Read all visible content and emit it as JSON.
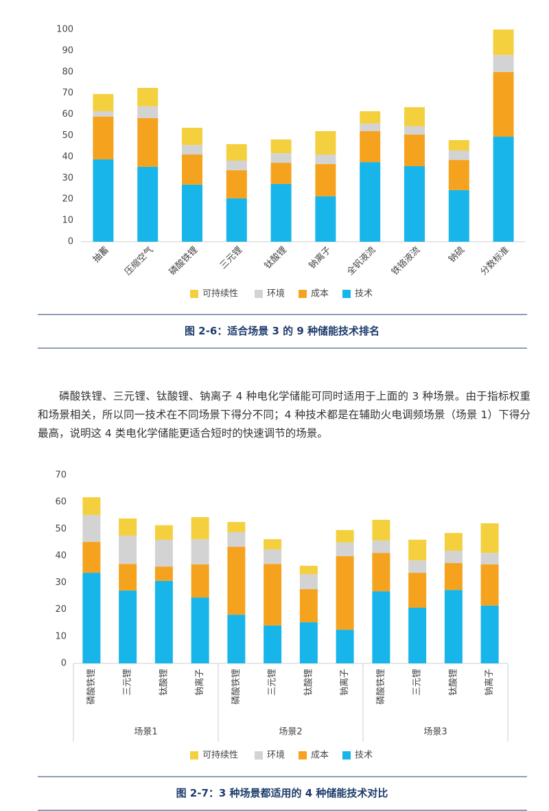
{
  "chart_data": [
    {
      "type": "bar",
      "stacked": true,
      "title": "图 2-6：适合场景 3 的 9 种储能技术排名",
      "categories": [
        "抽蓄",
        "压缩空气",
        "磷酸铁锂",
        "三元锂",
        "钛酸锂",
        "钠离子",
        "全钒液流",
        "铁铬液流",
        "钠硫",
        "分数标准"
      ],
      "series": [
        {
          "name": "技术",
          "color": "#17b5ea",
          "values": [
            38.8,
            35.3,
            26.9,
            20.4,
            27.2,
            21.4,
            37.5,
            35.6,
            24.3,
            49.5
          ]
        },
        {
          "name": "成本",
          "color": "#f5a31f",
          "values": [
            20.2,
            23,
            14.2,
            13.3,
            10,
            15.2,
            14.6,
            14.9,
            14.2,
            30.5
          ]
        },
        {
          "name": "环境",
          "color": "#d3d3d3",
          "values": [
            2.5,
            5.5,
            4.5,
            4.5,
            4.5,
            4.5,
            3.6,
            3.9,
            4.5,
            8
          ]
        },
        {
          "name": "可持续性",
          "color": "#f4d03f",
          "values": [
            8.1,
            8.7,
            8.1,
            7.8,
            6.5,
            11,
            5.8,
            9,
            4.9,
            12
          ]
        }
      ],
      "ylim": [
        0,
        100
      ],
      "yticks": [
        0,
        10,
        20,
        30,
        40,
        50,
        60,
        70,
        80,
        90,
        100
      ],
      "grid": false
    },
    {
      "type": "bar",
      "stacked": true,
      "title": "图 2-7：3 种场景都适用的 4 种储能技术对比",
      "categories": [
        "磷酸铁锂",
        "三元锂",
        "钛酸锂",
        "钠离子",
        "磷酸铁锂",
        "三元锂",
        "钛酸锂",
        "钠离子",
        "磷酸铁锂",
        "三元锂",
        "钛酸锂",
        "钠离子"
      ],
      "groups": [
        "场景1",
        "场景2",
        "场景3"
      ],
      "series": [
        {
          "name": "技术",
          "color": "#17b5ea",
          "values": [
            33.7,
            27.1,
            30.7,
            24.5,
            18.1,
            14.1,
            15.3,
            12.5,
            26.8,
            20.7,
            27.3,
            21.5
          ]
        },
        {
          "name": "成本",
          "color": "#f5a31f",
          "values": [
            11.5,
            9.9,
            5.3,
            12.3,
            25.3,
            22.9,
            12.3,
            27.4,
            14.3,
            13,
            10,
            15.3
          ]
        },
        {
          "name": "环境",
          "color": "#d3d3d3",
          "values": [
            10,
            10.5,
            10,
            9.4,
            5.4,
            5.4,
            5.6,
            5.1,
            4.6,
            4.6,
            4.6,
            4.3
          ]
        },
        {
          "name": "可持续性",
          "color": "#f4d03f",
          "values": [
            6.6,
            6.4,
            5.4,
            8.2,
            3.8,
            3.8,
            3.1,
            4.6,
            7.7,
            7.7,
            6.6,
            11
          ]
        }
      ],
      "ylim": [
        0,
        70
      ],
      "yticks": [
        0,
        10,
        20,
        30,
        40,
        50,
        60,
        70
      ],
      "grid": false
    }
  ],
  "paragraph": "磷酸铁锂、三元锂、钛酸锂、钠离子 4 种电化学储能可同时适用于上面的 3 种场景。由于指标权重和场景相关，所以同一技术在不同场景下得分不同；4 种技术都是在辅助火电调频场景（场景 1）下得分最高，说明这 4 类电化学储能更适合短时的快速调节的场景。"
}
